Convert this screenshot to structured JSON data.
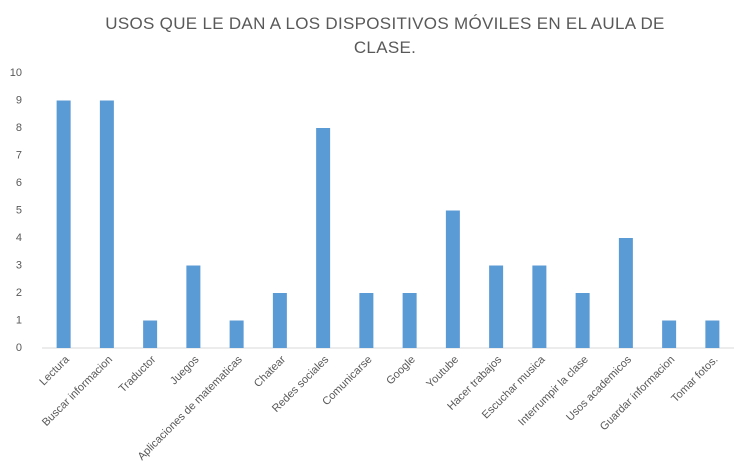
{
  "chart_data": {
    "type": "bar",
    "title": "USOS QUE LE DAN A LOS DISPOSITIVOS MÓVILES EN EL AULA DE CLASE.",
    "categories": [
      "Lectura",
      "Buscar informacion",
      "Traductor",
      "Juegos",
      "Aplicaciones de matematicas",
      "Chatear",
      "Redes sociales",
      "Comunicarse",
      "Google",
      "Youtube",
      "Hacer trabajos",
      "Escuchar musica",
      "Interrumpir la clase",
      "Usos academicos",
      "Guardar informacion",
      "Tomar fotos."
    ],
    "values": [
      9,
      9,
      1,
      3,
      1,
      2,
      8,
      2,
      2,
      5,
      3,
      3,
      2,
      4,
      1,
      1
    ],
    "color": "#5b9bd5",
    "ylim": [
      0,
      10
    ],
    "yticks": [
      0,
      1,
      2,
      3,
      4,
      5,
      6,
      7,
      8,
      9,
      10
    ],
    "grid": false
  }
}
